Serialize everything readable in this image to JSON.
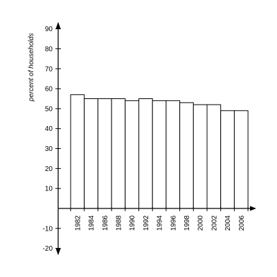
{
  "chart_data": {
    "type": "bar",
    "categories": [
      "1982",
      "1984",
      "1986",
      "1988",
      "1990",
      "1992",
      "1994",
      "1996",
      "1998",
      "2000",
      "2002",
      "2004",
      "2006"
    ],
    "values": [
      57,
      55,
      55,
      55,
      54,
      55,
      54,
      54,
      53,
      52,
      52,
      49,
      49
    ],
    "title": "",
    "xlabel": "",
    "ylabel": "percent of households",
    "ylim": [
      -20,
      90
    ],
    "yticks": [
      -20,
      -10,
      10,
      20,
      30,
      40,
      50,
      60,
      70,
      80,
      90
    ],
    "grid": false,
    "legend": "none",
    "bar_fill": "#ffffff",
    "bar_stroke": "#000000"
  }
}
